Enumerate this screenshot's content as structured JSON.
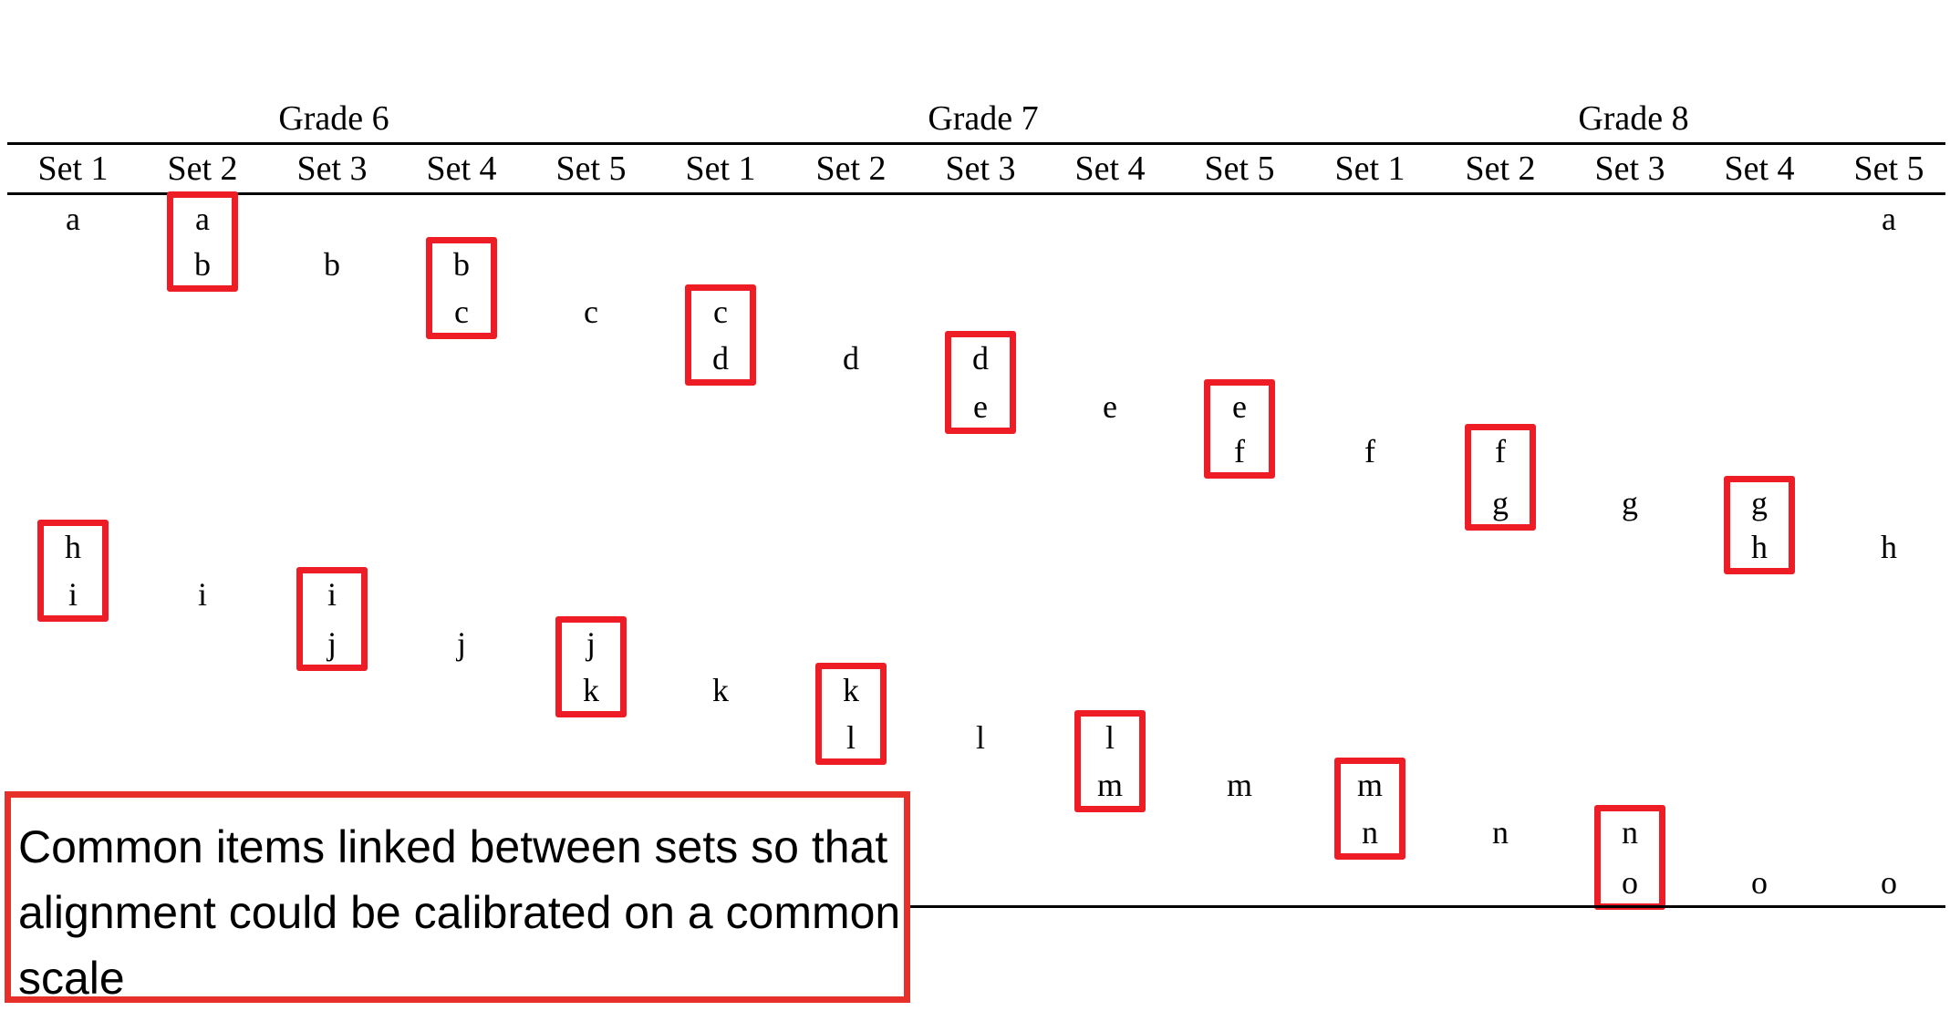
{
  "grades": [
    "Grade 6",
    "Grade 7",
    "Grade 8"
  ],
  "set_labels": [
    "Set 1",
    "Set 2",
    "Set 3",
    "Set 4",
    "Set 5",
    "Set 1",
    "Set 2",
    "Set 3",
    "Set 4",
    "Set 5",
    "Set 1",
    "Set 2",
    "Set 3",
    "Set 4",
    "Set 5"
  ],
  "callout": "Common items linked between sets so that alignment could be calibrated on a common scale",
  "colors": {
    "link_box": "#ee1c25",
    "callout_border": "#e8302b",
    "text": "#000000"
  },
  "items": [
    {
      "col": 0,
      "row": 0,
      "label": "a"
    },
    {
      "col": 1,
      "row": 0,
      "label": "a"
    },
    {
      "col": 1,
      "row": 1,
      "label": "b"
    },
    {
      "col": 2,
      "row": 1,
      "label": "b"
    },
    {
      "col": 3,
      "row": 1,
      "label": "b"
    },
    {
      "col": 3,
      "row": 2,
      "label": "c"
    },
    {
      "col": 4,
      "row": 2,
      "label": "c"
    },
    {
      "col": 5,
      "row": 2,
      "label": "c"
    },
    {
      "col": 5,
      "row": 3,
      "label": "d"
    },
    {
      "col": 6,
      "row": 3,
      "label": "d"
    },
    {
      "col": 7,
      "row": 3,
      "label": "d"
    },
    {
      "col": 7,
      "row": 4,
      "label": "e"
    },
    {
      "col": 8,
      "row": 4,
      "label": "e"
    },
    {
      "col": 9,
      "row": 4,
      "label": "e"
    },
    {
      "col": 9,
      "row": 5,
      "label": "f"
    },
    {
      "col": 10,
      "row": 5,
      "label": "f"
    },
    {
      "col": 11,
      "row": 5,
      "label": "f"
    },
    {
      "col": 11,
      "row": 6,
      "label": "g"
    },
    {
      "col": 12,
      "row": 6,
      "label": "g"
    },
    {
      "col": 13,
      "row": 6,
      "label": "g"
    },
    {
      "col": 13,
      "row": 7,
      "label": "h"
    },
    {
      "col": 14,
      "row": 0,
      "label": "a"
    },
    {
      "col": 14,
      "row": 7,
      "label": "h"
    },
    {
      "col": 0,
      "row": 7,
      "label": "h"
    },
    {
      "col": 0,
      "row": 8,
      "label": "i"
    },
    {
      "col": 1,
      "row": 8,
      "label": "i"
    },
    {
      "col": 2,
      "row": 8,
      "label": "i"
    },
    {
      "col": 2,
      "row": 9,
      "label": "j"
    },
    {
      "col": 3,
      "row": 9,
      "label": "j"
    },
    {
      "col": 4,
      "row": 9,
      "label": "j"
    },
    {
      "col": 4,
      "row": 10,
      "label": "k"
    },
    {
      "col": 5,
      "row": 10,
      "label": "k"
    },
    {
      "col": 6,
      "row": 10,
      "label": "k"
    },
    {
      "col": 6,
      "row": 11,
      "label": "l"
    },
    {
      "col": 7,
      "row": 11,
      "label": "l"
    },
    {
      "col": 8,
      "row": 11,
      "label": "l"
    },
    {
      "col": 8,
      "row": 12,
      "label": "m"
    },
    {
      "col": 9,
      "row": 12,
      "label": "m"
    },
    {
      "col": 10,
      "row": 12,
      "label": "m"
    },
    {
      "col": 10,
      "row": 13,
      "label": "n"
    },
    {
      "col": 11,
      "row": 13,
      "label": "n"
    },
    {
      "col": 12,
      "row": 13,
      "label": "n"
    },
    {
      "col": 12,
      "row": 14,
      "label": "o"
    },
    {
      "col": 13,
      "row": 14,
      "label": "o"
    },
    {
      "col": 14,
      "row": 14,
      "label": "o"
    }
  ],
  "linked_pairs": [
    {
      "col": 1,
      "rows": [
        0,
        1
      ]
    },
    {
      "col": 3,
      "rows": [
        1,
        2
      ]
    },
    {
      "col": 5,
      "rows": [
        2,
        3
      ]
    },
    {
      "col": 7,
      "rows": [
        3,
        4
      ]
    },
    {
      "col": 9,
      "rows": [
        4,
        5
      ]
    },
    {
      "col": 11,
      "rows": [
        5,
        6
      ]
    },
    {
      "col": 13,
      "rows": [
        6,
        7
      ]
    },
    {
      "col": 0,
      "rows": [
        7,
        8
      ]
    },
    {
      "col": 2,
      "rows": [
        8,
        9
      ]
    },
    {
      "col": 4,
      "rows": [
        9,
        10
      ]
    },
    {
      "col": 6,
      "rows": [
        10,
        11
      ]
    },
    {
      "col": 8,
      "rows": [
        11,
        12
      ]
    },
    {
      "col": 10,
      "rows": [
        12,
        13
      ]
    },
    {
      "col": 12,
      "rows": [
        13,
        14
      ]
    }
  ]
}
